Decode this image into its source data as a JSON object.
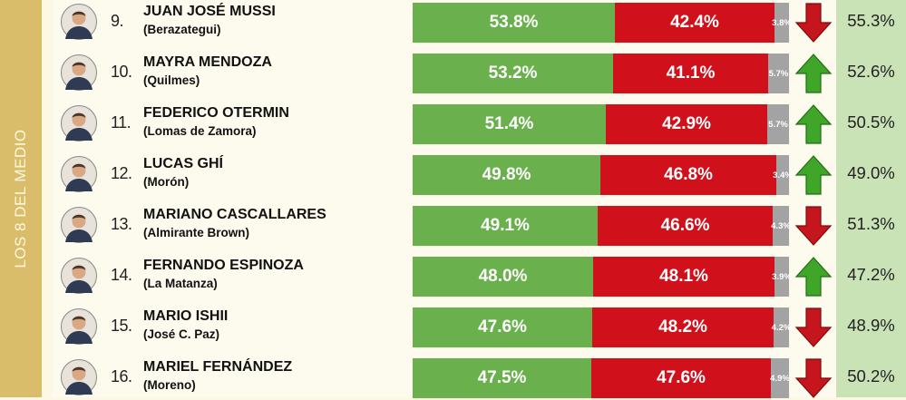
{
  "sidebar": {
    "label": "LOS 8 DEL MEDIO"
  },
  "colors": {
    "green": "#6ab04c",
    "red": "#d0111b",
    "grey": "#a3a3a3",
    "arrow_up": "#3fa62a",
    "arrow_down": "#c4161c"
  },
  "chart_data": {
    "type": "bar",
    "stacked": true,
    "rows": [
      {
        "rank": "9.",
        "name": "JUAN JOSÉ MUSSI",
        "district": "(Berazategui)",
        "green": 53.8,
        "red": 42.4,
        "grey": 3.8,
        "green_label": "53.8%",
        "red_label": "42.4%",
        "grey_label": "3.8%",
        "trend": "down",
        "right_value": "55.3%",
        "avatar_icon": "portrait-icon"
      },
      {
        "rank": "10.",
        "name": "MAYRA MENDOZA",
        "district": "(Quilmes)",
        "green": 53.2,
        "red": 41.1,
        "grey": 5.7,
        "green_label": "53.2%",
        "red_label": "41.1%",
        "grey_label": "5.7%",
        "trend": "up",
        "right_value": "52.6%",
        "avatar_icon": "portrait-icon"
      },
      {
        "rank": "11.",
        "name": "FEDERICO OTERMIN",
        "district": "(Lomas de Zamora)",
        "green": 51.4,
        "red": 42.9,
        "grey": 5.7,
        "green_label": "51.4%",
        "red_label": "42.9%",
        "grey_label": "5.7%",
        "trend": "up",
        "right_value": "50.5%",
        "avatar_icon": "portrait-icon"
      },
      {
        "rank": "12.",
        "name": "LUCAS GHÍ",
        "district": "(Morón)",
        "green": 49.8,
        "red": 46.8,
        "grey": 3.4,
        "green_label": "49.8%",
        "red_label": "46.8%",
        "grey_label": "3.4%",
        "trend": "up",
        "right_value": "49.0%",
        "avatar_icon": "portrait-icon"
      },
      {
        "rank": "13.",
        "name": "MARIANO CASCALLARES",
        "district": "(Almirante Brown)",
        "green": 49.1,
        "red": 46.6,
        "grey": 4.3,
        "green_label": "49.1%",
        "red_label": "46.6%",
        "grey_label": "4.3%",
        "trend": "down",
        "right_value": "51.3%",
        "avatar_icon": "portrait-icon"
      },
      {
        "rank": "14.",
        "name": "FERNANDO ESPINOZA",
        "district": "(La Matanza)",
        "green": 48.0,
        "red": 48.1,
        "grey": 3.9,
        "green_label": "48.0%",
        "red_label": "48.1%",
        "grey_label": "3.9%",
        "trend": "up",
        "right_value": "47.2%",
        "avatar_icon": "portrait-icon"
      },
      {
        "rank": "15.",
        "name": "MARIO ISHII",
        "district": "(José C. Paz)",
        "green": 47.6,
        "red": 48.2,
        "grey": 4.2,
        "green_label": "47.6%",
        "red_label": "48.2%",
        "grey_label": "4.2%",
        "trend": "down",
        "right_value": "48.9%",
        "avatar_icon": "portrait-icon"
      },
      {
        "rank": "16.",
        "name": "MARIEL FERNÁNDEZ",
        "district": "(Moreno)",
        "green": 47.5,
        "red": 47.6,
        "grey": 4.9,
        "green_label": "47.5%",
        "red_label": "47.6%",
        "grey_label": "4.9%",
        "trend": "down",
        "right_value": "50.2%",
        "avatar_icon": "portrait-icon"
      }
    ]
  }
}
